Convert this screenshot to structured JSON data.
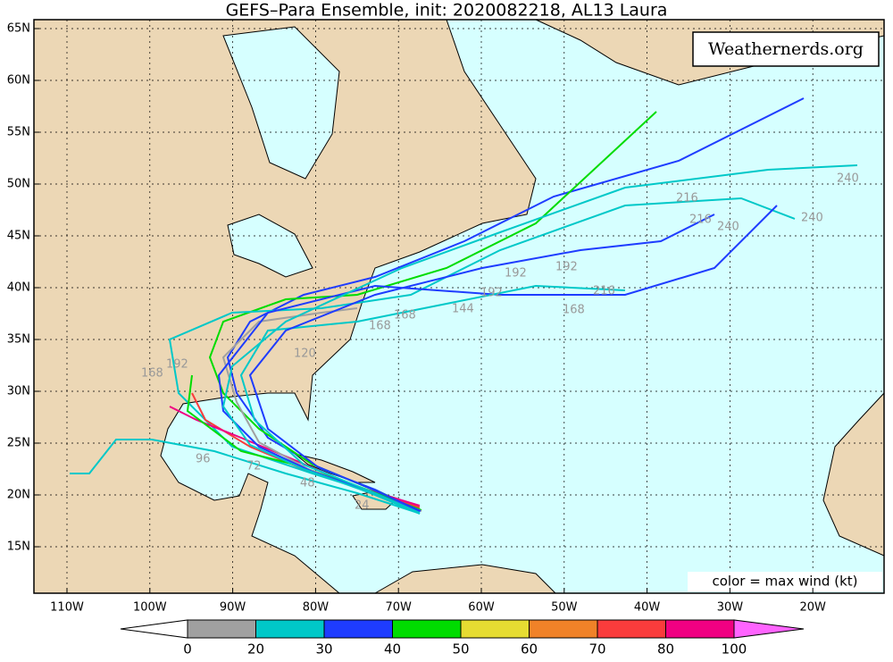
{
  "title": "GEFS–Para Ensemble, init: 2020082218, AL13 Laura",
  "watermark": "Weathernerds.org",
  "legend_note": "color = max wind (kt)",
  "lat_ticks": [
    {
      "value": 65,
      "label": "65N"
    },
    {
      "value": 60,
      "label": "60N"
    },
    {
      "value": 55,
      "label": "55N"
    },
    {
      "value": 50,
      "label": "50N"
    },
    {
      "value": 45,
      "label": "45N"
    },
    {
      "value": 40,
      "label": "40N"
    },
    {
      "value": 35,
      "label": "35N"
    },
    {
      "value": 30,
      "label": "30N"
    },
    {
      "value": 25,
      "label": "25N"
    },
    {
      "value": 20,
      "label": "20N"
    },
    {
      "value": 15,
      "label": "15N"
    }
  ],
  "lon_ticks": [
    {
      "value": -110,
      "label": "110W"
    },
    {
      "value": -100,
      "label": "100W"
    },
    {
      "value": -90,
      "label": "90W"
    },
    {
      "value": -80,
      "label": "80W"
    },
    {
      "value": -70,
      "label": "70W"
    },
    {
      "value": -60,
      "label": "60W"
    },
    {
      "value": -50,
      "label": "50W"
    },
    {
      "value": -40,
      "label": "40W"
    },
    {
      "value": -30,
      "label": "30W"
    },
    {
      "value": -20,
      "label": "20W"
    }
  ],
  "colorbar": {
    "ticks": [
      0,
      20,
      30,
      40,
      50,
      60,
      70,
      80,
      100
    ],
    "colors": [
      "#a0a0a0",
      "#00c8c8",
      "#1e3cff",
      "#00dc00",
      "#e6dc32",
      "#f08228",
      "#fa3c3c",
      "#f00082"
    ],
    "under_color": "#ffffff",
    "over_color": "#ff64ff"
  },
  "track_labels": [
    "240",
    "240",
    "216",
    "216",
    "240",
    "216",
    "168",
    "192",
    "192",
    "192",
    "144",
    "168",
    "168",
    "120",
    "192",
    "168",
    "96",
    "72",
    "48",
    "24"
  ]
}
